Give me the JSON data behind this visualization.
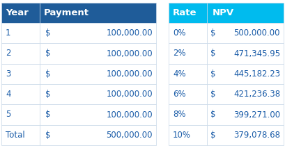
{
  "left_headers": [
    "Year",
    "Payment"
  ],
  "right_headers": [
    "Rate",
    "NPV"
  ],
  "left_rows": [
    [
      "1",
      "$",
      "100,000.00"
    ],
    [
      "2",
      "$",
      "100,000.00"
    ],
    [
      "3",
      "$",
      "100,000.00"
    ],
    [
      "4",
      "$",
      "100,000.00"
    ],
    [
      "5",
      "$",
      "100,000.00"
    ],
    [
      "Total",
      "$",
      "500,000.00"
    ]
  ],
  "right_rows": [
    [
      "0%",
      "$",
      "500,000.00"
    ],
    [
      "2%",
      "$",
      "471,345.95"
    ],
    [
      "4%",
      "$",
      "445,182.23"
    ],
    [
      "6%",
      "$",
      "421,236.38"
    ],
    [
      "8%",
      "$",
      "399,271.00"
    ],
    [
      "10%",
      "$",
      "379,078.68"
    ]
  ],
  "left_header_bg": "#1F5C99",
  "right_header_bg": "#00BBEE",
  "header_text_color": "#FFFFFF",
  "row_bg": "#FFFFFF",
  "row_text_color": "#1A5CA8",
  "grid_color": "#C8D8E8",
  "gap_color": "#FFFFFF",
  "fig_bg": "#FFFFFF",
  "fig_w": 4.09,
  "fig_h": 2.13,
  "dpi": 100
}
